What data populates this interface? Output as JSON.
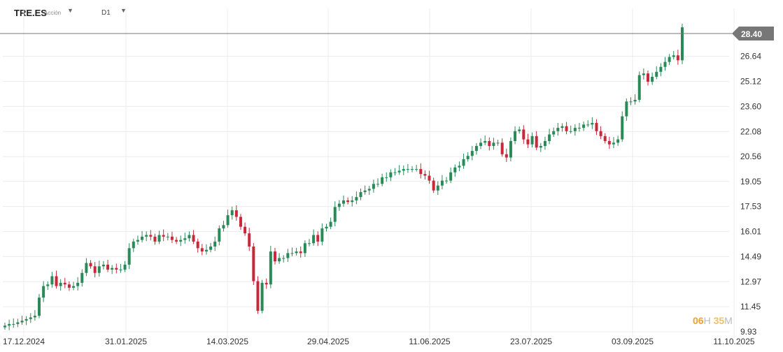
{
  "header": {
    "symbol": "TRE.ES",
    "instrument_type": "Acción",
    "timeframe": "D1",
    "symbol_dropdown_icon": "chevron-down-icon",
    "timeframe_dropdown_icon": "chevron-down-icon"
  },
  "timer": {
    "hours": "06",
    "hours_unit": "H",
    "minutes": "35",
    "minutes_unit": "M"
  },
  "colors": {
    "up": "#2a8a57",
    "down": "#c8283a",
    "grid": "#ececec",
    "price_line": "#777777",
    "price_tag": "#777777"
  },
  "chart_data": {
    "type": "candlestick",
    "current_price": "28.40",
    "y_ticks": [
      "9.93",
      "11.45",
      "12.97",
      "14.49",
      "16.01",
      "17.53",
      "19.05",
      "20.56",
      "22.08",
      "23.60",
      "25.12",
      "26.64"
    ],
    "x_ticks": [
      "17.12.2024",
      "31.01.2025",
      "14.03.2025",
      "29.04.2025",
      "11.06.2025",
      "23.07.2025",
      "03.09.2025",
      "11.10.2025"
    ],
    "grid": true,
    "closes": [
      10.3,
      10.4,
      10.4,
      10.5,
      10.6,
      10.7,
      10.8,
      10.9,
      12.0,
      12.7,
      12.8,
      13.3,
      12.7,
      12.9,
      12.8,
      12.6,
      12.7,
      12.9,
      13.5,
      14.1,
      13.9,
      13.5,
      13.9,
      14.0,
      13.7,
      13.8,
      13.7,
      13.7,
      14.0,
      15.0,
      15.4,
      15.5,
      15.7,
      15.8,
      15.7,
      15.4,
      15.8,
      15.7,
      15.7,
      15.5,
      15.4,
      15.5,
      15.6,
      15.8,
      15.4,
      15.0,
      14.8,
      14.9,
      15.1,
      15.4,
      16.2,
      16.4,
      17.0,
      17.3,
      16.9,
      16.3,
      15.9,
      15.1,
      13.0,
      11.2,
      12.9,
      12.8,
      14.8,
      14.2,
      14.4,
      14.4,
      14.7,
      14.7,
      14.8,
      14.7,
      15.3,
      15.3,
      15.8,
      15.4,
      16.2,
      16.3,
      16.6,
      17.5,
      17.7,
      17.9,
      17.8,
      17.9,
      18.1,
      18.4,
      18.5,
      18.6,
      18.9,
      18.9,
      19.3,
      19.3,
      19.6,
      19.6,
      19.7,
      19.8,
      19.8,
      19.8,
      19.8,
      19.5,
      19.4,
      19.1,
      18.5,
      18.8,
      19.1,
      19.1,
      19.6,
      19.9,
      20.0,
      20.4,
      20.6,
      20.9,
      21.2,
      21.4,
      21.5,
      21.2,
      21.4,
      21.4,
      20.7,
      20.5,
      21.5,
      22.1,
      22.2,
      21.6,
      21.3,
      21.8,
      21.1,
      21.2,
      21.5,
      21.9,
      22.1,
      22.3,
      22.4,
      22.1,
      22.1,
      22.3,
      22.3,
      22.5,
      22.5,
      22.6,
      22.1,
      21.8,
      21.5,
      21.3,
      21.4,
      21.6,
      23.0,
      23.9,
      23.9,
      24.0,
      25.5,
      25.6,
      25.1,
      25.4,
      25.7,
      26.0,
      26.3,
      26.6,
      26.7,
      26.4,
      28.4
    ]
  }
}
